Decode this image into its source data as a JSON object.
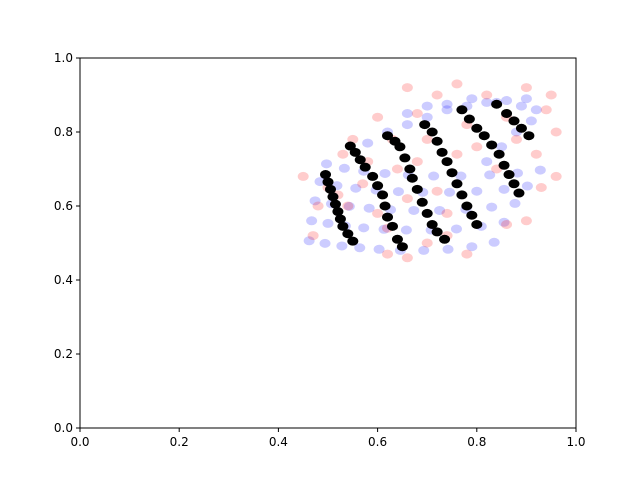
{
  "chart_data": {
    "type": "scatter",
    "title": "",
    "xlabel": "",
    "ylabel": "",
    "xlim": [
      0,
      1
    ],
    "ylim": [
      0,
      1
    ],
    "xticks": [
      "0.0",
      "0.2",
      "0.4",
      "0.6",
      "0.8",
      "1.0"
    ],
    "yticks": [
      "0.0",
      "0.2",
      "0.4",
      "0.6",
      "0.8",
      "1.0"
    ],
    "grid": false,
    "legend": "none",
    "series": [
      {
        "color": "#0000ff",
        "alpha": 0.2,
        "description_points": [
          [
            0.462,
            0.506
          ],
          [
            0.467,
            0.56
          ],
          [
            0.474,
            0.614
          ],
          [
            0.484,
            0.666
          ],
          [
            0.497,
            0.714
          ],
          [
            0.494,
            0.499
          ],
          [
            0.5,
            0.553
          ],
          [
            0.507,
            0.606
          ],
          [
            0.518,
            0.655
          ],
          [
            0.533,
            0.702
          ],
          [
            0.528,
            0.492
          ],
          [
            0.535,
            0.546
          ],
          [
            0.543,
            0.599
          ],
          [
            0.556,
            0.648
          ],
          [
            0.572,
            0.694
          ],
          [
            0.564,
            0.487
          ],
          [
            0.572,
            0.541
          ],
          [
            0.583,
            0.594
          ],
          [
            0.597,
            0.643
          ],
          [
            0.615,
            0.688
          ],
          [
            0.603,
            0.483
          ],
          [
            0.613,
            0.537
          ],
          [
            0.626,
            0.59
          ],
          [
            0.642,
            0.639
          ],
          [
            0.662,
            0.684
          ],
          [
            0.646,
            0.48
          ],
          [
            0.658,
            0.535
          ],
          [
            0.673,
            0.588
          ],
          [
            0.691,
            0.637
          ],
          [
            0.713,
            0.681
          ],
          [
            0.693,
            0.48
          ],
          [
            0.708,
            0.535
          ],
          [
            0.725,
            0.588
          ],
          [
            0.745,
            0.637
          ],
          [
            0.768,
            0.681
          ],
          [
            0.742,
            0.483
          ],
          [
            0.759,
            0.538
          ],
          [
            0.778,
            0.591
          ],
          [
            0.8,
            0.64
          ],
          [
            0.826,
            0.684
          ],
          [
            0.79,
            0.49
          ],
          [
            0.809,
            0.545
          ],
          [
            0.83,
            0.597
          ],
          [
            0.855,
            0.645
          ],
          [
            0.882,
            0.689
          ],
          [
            0.835,
            0.502
          ],
          [
            0.855,
            0.556
          ],
          [
            0.877,
            0.607
          ],
          [
            0.902,
            0.654
          ],
          [
            0.928,
            0.697
          ],
          [
            0.58,
            0.77
          ],
          [
            0.62,
            0.8
          ],
          [
            0.66,
            0.82
          ],
          [
            0.7,
            0.84
          ],
          [
            0.74,
            0.86
          ],
          [
            0.78,
            0.87
          ],
          [
            0.82,
            0.88
          ],
          [
            0.86,
            0.885
          ],
          [
            0.9,
            0.89
          ],
          [
            0.92,
            0.86
          ],
          [
            0.66,
            0.85
          ],
          [
            0.7,
            0.87
          ],
          [
            0.74,
            0.875
          ],
          [
            0.79,
            0.89
          ],
          [
            0.84,
            0.88
          ],
          [
            0.89,
            0.87
          ],
          [
            0.91,
            0.83
          ],
          [
            0.88,
            0.8
          ],
          [
            0.85,
            0.76
          ],
          [
            0.82,
            0.72
          ]
        ]
      },
      {
        "color": "#ff0000",
        "alpha": 0.2,
        "description_points": [
          [
            0.45,
            0.68
          ],
          [
            0.5,
            0.65
          ],
          [
            0.54,
            0.6
          ],
          [
            0.57,
            0.66
          ],
          [
            0.6,
            0.58
          ],
          [
            0.62,
            0.54
          ],
          [
            0.64,
            0.7
          ],
          [
            0.66,
            0.62
          ],
          [
            0.68,
            0.72
          ],
          [
            0.7,
            0.78
          ],
          [
            0.72,
            0.64
          ],
          [
            0.74,
            0.58
          ],
          [
            0.76,
            0.74
          ],
          [
            0.78,
            0.82
          ],
          [
            0.8,
            0.76
          ],
          [
            0.82,
            0.9
          ],
          [
            0.84,
            0.7
          ],
          [
            0.86,
            0.84
          ],
          [
            0.88,
            0.78
          ],
          [
            0.9,
            0.92
          ],
          [
            0.92,
            0.74
          ],
          [
            0.94,
            0.86
          ],
          [
            0.96,
            0.8
          ],
          [
            0.95,
            0.9
          ],
          [
            0.76,
            0.93
          ],
          [
            0.72,
            0.9
          ],
          [
            0.68,
            0.85
          ],
          [
            0.66,
            0.92
          ],
          [
            0.63,
            0.78
          ],
          [
            0.6,
            0.84
          ],
          [
            0.58,
            0.72
          ],
          [
            0.55,
            0.78
          ],
          [
            0.53,
            0.74
          ],
          [
            0.52,
            0.63
          ],
          [
            0.48,
            0.6
          ],
          [
            0.47,
            0.52
          ],
          [
            0.62,
            0.47
          ],
          [
            0.66,
            0.46
          ],
          [
            0.7,
            0.5
          ],
          [
            0.74,
            0.52
          ],
          [
            0.78,
            0.47
          ],
          [
            0.86,
            0.55
          ],
          [
            0.9,
            0.56
          ],
          [
            0.93,
            0.65
          ],
          [
            0.96,
            0.68
          ]
        ]
      },
      {
        "color": "#000000",
        "alpha": 1.0,
        "description_points": [
          [
            0.495,
            0.685
          ],
          [
            0.5,
            0.665
          ],
          [
            0.505,
            0.645
          ],
          [
            0.51,
            0.625
          ],
          [
            0.515,
            0.605
          ],
          [
            0.52,
            0.585
          ],
          [
            0.525,
            0.565
          ],
          [
            0.53,
            0.545
          ],
          [
            0.54,
            0.525
          ],
          [
            0.55,
            0.505
          ],
          [
            0.545,
            0.762
          ],
          [
            0.555,
            0.745
          ],
          [
            0.565,
            0.725
          ],
          [
            0.575,
            0.705
          ],
          [
            0.59,
            0.68
          ],
          [
            0.6,
            0.655
          ],
          [
            0.61,
            0.63
          ],
          [
            0.615,
            0.6
          ],
          [
            0.62,
            0.57
          ],
          [
            0.63,
            0.545
          ],
          [
            0.64,
            0.51
          ],
          [
            0.65,
            0.49
          ],
          [
            0.62,
            0.79
          ],
          [
            0.635,
            0.775
          ],
          [
            0.645,
            0.76
          ],
          [
            0.655,
            0.73
          ],
          [
            0.665,
            0.7
          ],
          [
            0.67,
            0.675
          ],
          [
            0.68,
            0.645
          ],
          [
            0.69,
            0.61
          ],
          [
            0.7,
            0.58
          ],
          [
            0.71,
            0.55
          ],
          [
            0.72,
            0.53
          ],
          [
            0.735,
            0.51
          ],
          [
            0.695,
            0.82
          ],
          [
            0.71,
            0.8
          ],
          [
            0.72,
            0.775
          ],
          [
            0.73,
            0.745
          ],
          [
            0.74,
            0.72
          ],
          [
            0.75,
            0.69
          ],
          [
            0.76,
            0.66
          ],
          [
            0.77,
            0.63
          ],
          [
            0.78,
            0.6
          ],
          [
            0.79,
            0.575
          ],
          [
            0.8,
            0.55
          ],
          [
            0.77,
            0.86
          ],
          [
            0.785,
            0.835
          ],
          [
            0.8,
            0.81
          ],
          [
            0.815,
            0.79
          ],
          [
            0.83,
            0.765
          ],
          [
            0.845,
            0.74
          ],
          [
            0.855,
            0.71
          ],
          [
            0.865,
            0.685
          ],
          [
            0.875,
            0.66
          ],
          [
            0.885,
            0.635
          ],
          [
            0.84,
            0.875
          ],
          [
            0.86,
            0.85
          ],
          [
            0.875,
            0.83
          ],
          [
            0.89,
            0.81
          ],
          [
            0.905,
            0.79
          ]
        ]
      }
    ]
  }
}
